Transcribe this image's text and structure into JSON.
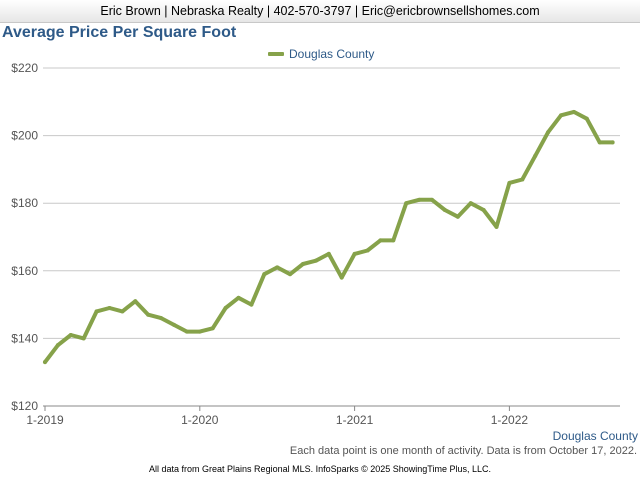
{
  "header": {
    "contact": "Eric Brown | Nebraska Realty | 402-570-3797 | Eric@ericbrownsellshomes.com"
  },
  "chart_data": {
    "type": "line",
    "title": "Average Price Per Square Foot",
    "xlabel": "",
    "ylabel": "",
    "ylim": [
      120,
      220
    ],
    "y_ticks": [
      "$120",
      "$140",
      "$160",
      "$180",
      "$200",
      "$220"
    ],
    "x_ticks": [
      "1-2019",
      "1-2020",
      "1-2021",
      "1-2022"
    ],
    "grid": true,
    "legend_position": "top-center",
    "x": [
      "1-2019",
      "2-2019",
      "3-2019",
      "4-2019",
      "5-2019",
      "6-2019",
      "7-2019",
      "8-2019",
      "9-2019",
      "10-2019",
      "11-2019",
      "12-2019",
      "1-2020",
      "2-2020",
      "3-2020",
      "4-2020",
      "5-2020",
      "6-2020",
      "7-2020",
      "8-2020",
      "9-2020",
      "10-2020",
      "11-2020",
      "12-2020",
      "1-2021",
      "2-2021",
      "3-2021",
      "4-2021",
      "5-2021",
      "6-2021",
      "7-2021",
      "8-2021",
      "9-2021",
      "10-2021",
      "11-2021",
      "12-2021",
      "1-2022",
      "2-2022",
      "3-2022",
      "4-2022",
      "5-2022",
      "6-2022",
      "7-2022",
      "8-2022",
      "9-2022"
    ],
    "series": [
      {
        "name": "Douglas County",
        "color": "#86a24a",
        "values": [
          133,
          138,
          141,
          140,
          148,
          149,
          148,
          151,
          147,
          146,
          144,
          142,
          142,
          143,
          149,
          152,
          150,
          159,
          161,
          159,
          162,
          163,
          165,
          158,
          165,
          166,
          169,
          169,
          180,
          181,
          181,
          178,
          176,
          180,
          178,
          173,
          186,
          187,
          194,
          201,
          206,
          207,
          205,
          198,
          198
        ]
      }
    ],
    "series_label": "Douglas County"
  },
  "note": "Each data point is one month of activity. Data is from October 17, 2022.",
  "footer": "All data from Great Plains Regional MLS. InfoSparks © 2025 ShowingTime Plus, LLC."
}
